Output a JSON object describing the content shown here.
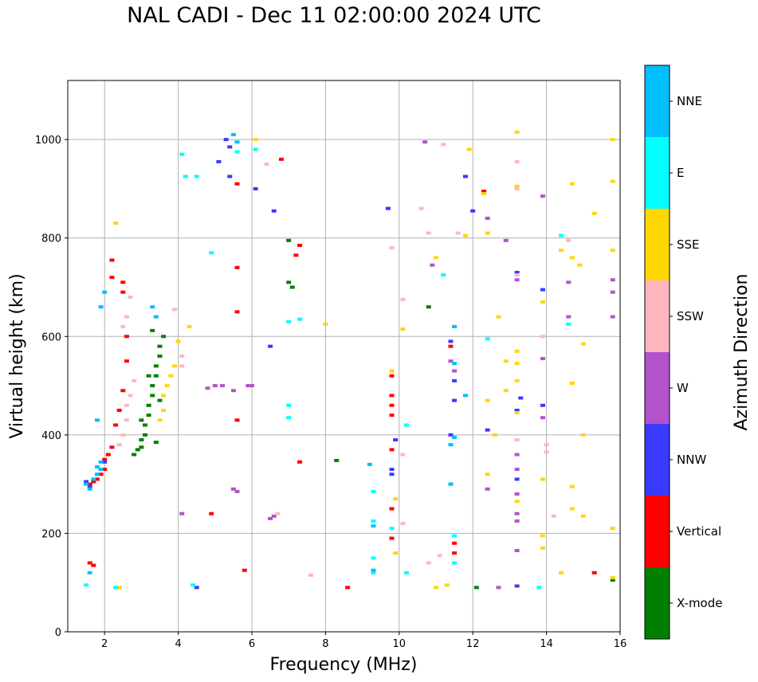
{
  "chart_data": {
    "type": "scatter",
    "title": "NAL CADI - Dec 11 02:00:00 2024 UTC",
    "xlabel": "Frequency (MHz)",
    "ylabel": "Virtual height (km)",
    "xlim": [
      1,
      16
    ],
    "ylim": [
      0,
      1120
    ],
    "xticks": [
      2,
      4,
      6,
      8,
      10,
      12,
      14,
      16
    ],
    "yticks": [
      0,
      200,
      400,
      600,
      800,
      1000
    ],
    "grid": true,
    "colorbar": {
      "label": "Azimuth Direction",
      "categories": [
        {
          "name": "X-mode",
          "color": "#008000"
        },
        {
          "name": "Vertical",
          "color": "#ff0000"
        },
        {
          "name": "NNW",
          "color": "#3a3aff"
        },
        {
          "name": "W",
          "color": "#b452cd"
        },
        {
          "name": "SSW",
          "color": "#ffb6c1"
        },
        {
          "name": "SSE",
          "color": "#ffd700"
        },
        {
          "name": "E",
          "color": "#00ffff"
        },
        {
          "name": "NNE",
          "color": "#00bfff"
        }
      ]
    },
    "series": [
      {
        "name": "X-mode",
        "points": [
          [
            2.9,
            370
          ],
          [
            3.0,
            375
          ],
          [
            3.0,
            390
          ],
          [
            3.1,
            400
          ],
          [
            3.1,
            420
          ],
          [
            3.2,
            440
          ],
          [
            3.2,
            460
          ],
          [
            3.3,
            480
          ],
          [
            3.3,
            500
          ],
          [
            3.4,
            520
          ],
          [
            3.4,
            540
          ],
          [
            3.5,
            560
          ],
          [
            3.5,
            580
          ],
          [
            3.6,
            600
          ],
          [
            3.3,
            612
          ],
          [
            3.4,
            385
          ],
          [
            2.8,
            360
          ],
          [
            3.0,
            430
          ],
          [
            3.2,
            520
          ],
          [
            3.5,
            470
          ],
          [
            7.0,
            795
          ],
          [
            7.0,
            710
          ],
          [
            7.1,
            700
          ],
          [
            8.3,
            348
          ],
          [
            10.8,
            660
          ],
          [
            12.1,
            90
          ],
          [
            15.8,
            105
          ]
        ]
      },
      {
        "name": "Vertical",
        "points": [
          [
            1.6,
            140
          ],
          [
            1.7,
            135
          ],
          [
            1.6,
            300
          ],
          [
            1.7,
            305
          ],
          [
            1.8,
            310
          ],
          [
            1.9,
            320
          ],
          [
            2.0,
            330
          ],
          [
            2.0,
            350
          ],
          [
            2.1,
            360
          ],
          [
            2.2,
            375
          ],
          [
            2.3,
            420
          ],
          [
            2.4,
            450
          ],
          [
            2.5,
            490
          ],
          [
            2.6,
            550
          ],
          [
            2.6,
            600
          ],
          [
            2.2,
            720
          ],
          [
            2.2,
            755
          ],
          [
            2.5,
            690
          ],
          [
            2.5,
            710
          ],
          [
            5.6,
            430
          ],
          [
            5.6,
            650
          ],
          [
            5.6,
            740
          ],
          [
            5.6,
            910
          ],
          [
            6.8,
            960
          ],
          [
            7.2,
            765
          ],
          [
            7.3,
            785
          ],
          [
            7.3,
            345
          ],
          [
            8.6,
            90
          ],
          [
            5.8,
            125
          ],
          [
            4.9,
            240
          ],
          [
            9.8,
            190
          ],
          [
            9.8,
            250
          ],
          [
            9.8,
            370
          ],
          [
            9.8,
            440
          ],
          [
            9.8,
            460
          ],
          [
            9.8,
            480
          ],
          [
            9.8,
            520
          ],
          [
            11.4,
            580
          ],
          [
            11.5,
            160
          ],
          [
            11.5,
            180
          ],
          [
            12.3,
            895
          ],
          [
            15.3,
            120
          ]
        ]
      },
      {
        "name": "NNW",
        "points": [
          [
            1.5,
            305
          ],
          [
            1.6,
            295
          ],
          [
            2.0,
            345
          ],
          [
            4.5,
            90
          ],
          [
            6.1,
            900
          ],
          [
            6.6,
            855
          ],
          [
            6.5,
            580
          ],
          [
            9.7,
            860
          ],
          [
            9.8,
            320
          ],
          [
            9.8,
            330
          ],
          [
            9.9,
            390
          ],
          [
            11.4,
            400
          ],
          [
            11.5,
            510
          ],
          [
            11.5,
            470
          ],
          [
            11.4,
            590
          ],
          [
            11.8,
            925
          ],
          [
            12.0,
            855
          ],
          [
            12.4,
            410
          ],
          [
            13.2,
            310
          ],
          [
            13.2,
            450
          ],
          [
            13.3,
            475
          ],
          [
            13.2,
            730
          ],
          [
            13.9,
            695
          ],
          [
            13.9,
            460
          ],
          [
            13.2,
            93
          ],
          [
            5.4,
            925
          ],
          [
            5.1,
            955
          ],
          [
            5.4,
            985
          ],
          [
            5.3,
            1000
          ]
        ]
      },
      {
        "name": "W",
        "points": [
          [
            4.1,
            240
          ],
          [
            4.8,
            495
          ],
          [
            5.0,
            500
          ],
          [
            5.2,
            500
          ],
          [
            5.5,
            490
          ],
          [
            5.5,
            290
          ],
          [
            5.6,
            285
          ],
          [
            5.9,
            500
          ],
          [
            6.0,
            500
          ],
          [
            6.5,
            230
          ],
          [
            6.6,
            235
          ],
          [
            10.9,
            745
          ],
          [
            11.4,
            550
          ],
          [
            11.5,
            530
          ],
          [
            11.5,
            620
          ],
          [
            12.4,
            840
          ],
          [
            12.4,
            290
          ],
          [
            12.7,
            90
          ],
          [
            12.9,
            795
          ],
          [
            13.2,
            715
          ],
          [
            13.2,
            360
          ],
          [
            13.2,
            280
          ],
          [
            13.2,
            240
          ],
          [
            13.2,
            225
          ],
          [
            13.2,
            165
          ],
          [
            13.2,
            330
          ],
          [
            13.9,
            885
          ],
          [
            13.9,
            555
          ],
          [
            13.9,
            435
          ],
          [
            14.6,
            710
          ],
          [
            14.6,
            640
          ],
          [
            15.8,
            715
          ],
          [
            15.8,
            690
          ],
          [
            15.8,
            640
          ],
          [
            10.7,
            995
          ]
        ]
      },
      {
        "name": "SSW",
        "points": [
          [
            2.4,
            380
          ],
          [
            2.5,
            400
          ],
          [
            2.6,
            430
          ],
          [
            2.6,
            460
          ],
          [
            2.7,
            480
          ],
          [
            2.8,
            510
          ],
          [
            2.5,
            620
          ],
          [
            2.6,
            640
          ],
          [
            2.7,
            680
          ],
          [
            3.9,
            655
          ],
          [
            4.1,
            560
          ],
          [
            4.1,
            540
          ],
          [
            6.4,
            950
          ],
          [
            9.8,
            780
          ],
          [
            10.1,
            675
          ],
          [
            10.1,
            360
          ],
          [
            10.1,
            220
          ],
          [
            10.6,
            860
          ],
          [
            10.8,
            810
          ],
          [
            10.8,
            140
          ],
          [
            11.2,
            990
          ],
          [
            11.6,
            810
          ],
          [
            11.1,
            155
          ],
          [
            13.2,
            955
          ],
          [
            13.2,
            725
          ],
          [
            13.2,
            390
          ],
          [
            13.9,
            600
          ],
          [
            14.0,
            380
          ],
          [
            14.0,
            365
          ],
          [
            14.2,
            235
          ],
          [
            14.6,
            795
          ],
          [
            7.6,
            115
          ],
          [
            6.7,
            240
          ],
          [
            13.2,
            900
          ]
        ]
      },
      {
        "name": "SSE",
        "points": [
          [
            3.5,
            430
          ],
          [
            3.6,
            450
          ],
          [
            3.6,
            480
          ],
          [
            3.7,
            500
          ],
          [
            3.8,
            520
          ],
          [
            3.9,
            540
          ],
          [
            4.0,
            590
          ],
          [
            4.3,
            620
          ],
          [
            2.3,
            830
          ],
          [
            2.4,
            90
          ],
          [
            6.1,
            1000
          ],
          [
            8.0,
            625
          ],
          [
            9.8,
            530
          ],
          [
            9.9,
            270
          ],
          [
            9.9,
            160
          ],
          [
            10.1,
            615
          ],
          [
            11.0,
            760
          ],
          [
            11.0,
            90
          ],
          [
            11.3,
            95
          ],
          [
            11.8,
            805
          ],
          [
            11.9,
            980
          ],
          [
            12.3,
            890
          ],
          [
            12.4,
            810
          ],
          [
            12.4,
            470
          ],
          [
            12.4,
            320
          ],
          [
            12.6,
            400
          ],
          [
            12.7,
            640
          ],
          [
            12.9,
            550
          ],
          [
            12.9,
            490
          ],
          [
            13.2,
            570
          ],
          [
            13.2,
            545
          ],
          [
            13.2,
            510
          ],
          [
            13.2,
            445
          ],
          [
            13.2,
            265
          ],
          [
            13.2,
            1015
          ],
          [
            13.2,
            905
          ],
          [
            13.9,
            670
          ],
          [
            13.9,
            310
          ],
          [
            13.9,
            195
          ],
          [
            13.9,
            170
          ],
          [
            14.4,
            775
          ],
          [
            14.4,
            120
          ],
          [
            14.7,
            910
          ],
          [
            14.7,
            760
          ],
          [
            14.7,
            505
          ],
          [
            14.7,
            295
          ],
          [
            14.7,
            250
          ],
          [
            14.9,
            745
          ],
          [
            15.0,
            585
          ],
          [
            15.0,
            400
          ],
          [
            15.0,
            235
          ],
          [
            15.3,
            850
          ],
          [
            15.8,
            1000
          ],
          [
            15.8,
            915
          ],
          [
            15.8,
            775
          ],
          [
            15.8,
            210
          ],
          [
            15.8,
            110
          ]
        ]
      },
      {
        "name": "E",
        "points": [
          [
            1.5,
            95
          ],
          [
            2.3,
            90
          ],
          [
            4.1,
            970
          ],
          [
            4.2,
            925
          ],
          [
            4.4,
            95
          ],
          [
            4.5,
            925
          ],
          [
            4.9,
            770
          ],
          [
            5.6,
            975
          ],
          [
            6.1,
            980
          ],
          [
            7.0,
            460
          ],
          [
            7.0,
            630
          ],
          [
            7.0,
            435
          ],
          [
            7.3,
            635
          ],
          [
            9.3,
            285
          ],
          [
            9.3,
            225
          ],
          [
            9.3,
            150
          ],
          [
            9.3,
            120
          ],
          [
            9.8,
            210
          ],
          [
            10.2,
            420
          ],
          [
            10.2,
            120
          ],
          [
            11.2,
            725
          ],
          [
            11.4,
            300
          ],
          [
            11.5,
            195
          ],
          [
            11.5,
            140
          ],
          [
            12.4,
            595
          ],
          [
            13.8,
            90
          ],
          [
            14.4,
            805
          ],
          [
            14.6,
            625
          ]
        ]
      },
      {
        "name": "NNE",
        "points": [
          [
            1.5,
            300
          ],
          [
            1.6,
            290
          ],
          [
            1.7,
            310
          ],
          [
            1.8,
            320
          ],
          [
            1.8,
            335
          ],
          [
            1.9,
            345
          ],
          [
            1.9,
            330
          ],
          [
            1.6,
            120
          ],
          [
            1.8,
            430
          ],
          [
            1.9,
            660
          ],
          [
            2.0,
            690
          ],
          [
            3.3,
            660
          ],
          [
            3.4,
            640
          ],
          [
            5.5,
            1010
          ],
          [
            5.6,
            995
          ],
          [
            9.2,
            340
          ],
          [
            9.3,
            125
          ],
          [
            9.3,
            215
          ],
          [
            11.5,
            620
          ],
          [
            11.5,
            545
          ],
          [
            11.4,
            300
          ],
          [
            11.5,
            395
          ],
          [
            11.4,
            380
          ],
          [
            11.8,
            480
          ]
        ]
      }
    ]
  }
}
